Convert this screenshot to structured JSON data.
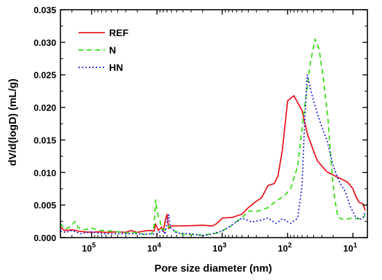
{
  "chart_data": {
    "type": "line",
    "xlabel": "Pore size diameter (nm)",
    "ylabel": "dV/d(logD)  (mL/g)",
    "x_scale": "log",
    "x_reversed": true,
    "xlim": [
      300000,
      6
    ],
    "ylim": [
      0,
      0.035
    ],
    "x_ticks": [
      {
        "value": 100000,
        "mantissa": "10",
        "exponent": "5"
      },
      {
        "value": 10000,
        "mantissa": "10",
        "exponent": "4"
      },
      {
        "value": 1000,
        "mantissa": "10",
        "exponent": "3"
      },
      {
        "value": 100,
        "mantissa": "10",
        "exponent": "2"
      },
      {
        "value": 10,
        "mantissa": "10",
        "exponent": "1"
      }
    ],
    "y_ticks": [
      "0.000",
      "0.005",
      "0.010",
      "0.015",
      "0.020",
      "0.025",
      "0.030",
      "0.035"
    ],
    "grid": false,
    "legend_position": "top-left",
    "series": [
      {
        "name": "REF",
        "color": "#e8141c",
        "dash": "solid",
        "points": [
          [
            300000,
            0.0016
          ],
          [
            260000,
            0.0011
          ],
          [
            200000,
            0.0012
          ],
          [
            160000,
            0.001
          ],
          [
            130000,
            0.0009
          ],
          [
            100000,
            0.0008
          ],
          [
            80000,
            0.0009
          ],
          [
            60000,
            0.0008
          ],
          [
            40000,
            0.0009
          ],
          [
            30000,
            0.0008
          ],
          [
            25000,
            0.0011
          ],
          [
            20000,
            0.0008
          ],
          [
            16000,
            0.001
          ],
          [
            13000,
            0.0011
          ],
          [
            11000,
            0.001
          ],
          [
            10500,
            0.0021
          ],
          [
            9500,
            0.0011
          ],
          [
            8500,
            0.0016
          ],
          [
            8000,
            0.0009
          ],
          [
            7500,
            0.0025
          ],
          [
            7000,
            0.0036
          ],
          [
            6600,
            0.0014
          ],
          [
            6000,
            0.0018
          ],
          [
            4000,
            0.0018
          ],
          [
            2000,
            0.0019
          ],
          [
            1400,
            0.0018
          ],
          [
            1200,
            0.0022
          ],
          [
            1000,
            0.003
          ],
          [
            700,
            0.0031
          ],
          [
            500,
            0.0036
          ],
          [
            400,
            0.0046
          ],
          [
            300,
            0.0056
          ],
          [
            250,
            0.0061
          ],
          [
            200,
            0.008
          ],
          [
            160,
            0.0083
          ],
          [
            140,
            0.0095
          ],
          [
            120,
            0.0135
          ],
          [
            100,
            0.021
          ],
          [
            80,
            0.0218
          ],
          [
            60,
            0.0195
          ],
          [
            50,
            0.016
          ],
          [
            40,
            0.0133
          ],
          [
            35,
            0.0118
          ],
          [
            30,
            0.011
          ],
          [
            25,
            0.0101
          ],
          [
            20,
            0.0096
          ],
          [
            15,
            0.009
          ],
          [
            12,
            0.0085
          ],
          [
            10,
            0.0075
          ],
          [
            9,
            0.0063
          ],
          [
            8,
            0.0054
          ],
          [
            7,
            0.0052
          ],
          [
            6.5,
            0.0042
          ]
        ]
      },
      {
        "name": "N",
        "color": "#33dd11",
        "dash": "dashed",
        "points": [
          [
            300000,
            0.0022
          ],
          [
            260000,
            0.0013
          ],
          [
            220000,
            0.0016
          ],
          [
            200000,
            0.0019
          ],
          [
            180000,
            0.0025
          ],
          [
            160000,
            0.0015
          ],
          [
            130000,
            0.0012
          ],
          [
            100000,
            0.0015
          ],
          [
            80000,
            0.0011
          ],
          [
            60000,
            0.0011
          ],
          [
            40000,
            0.0009
          ],
          [
            30000,
            0.0007
          ],
          [
            20000,
            0.0008
          ],
          [
            16000,
            0.0005
          ],
          [
            14000,
            0.0005
          ],
          [
            12000,
            0.0006
          ],
          [
            11000,
            0.0018
          ],
          [
            10500,
            0.0058
          ],
          [
            10000,
            0.0044
          ],
          [
            9500,
            0.0032
          ],
          [
            9000,
            0.0027
          ],
          [
            8500,
            0.0014
          ],
          [
            8000,
            0.0012
          ],
          [
            7000,
            0.0012
          ],
          [
            6500,
            0.0018
          ],
          [
            6000,
            0.0012
          ],
          [
            4000,
            0.0005
          ],
          [
            2000,
            0.0004
          ],
          [
            1200,
            0.0007
          ],
          [
            800,
            0.0015
          ],
          [
            600,
            0.0025
          ],
          [
            500,
            0.003
          ],
          [
            400,
            0.0041
          ],
          [
            300,
            0.004
          ],
          [
            200,
            0.0046
          ],
          [
            150,
            0.0056
          ],
          [
            110,
            0.0065
          ],
          [
            90,
            0.0075
          ],
          [
            70,
            0.011
          ],
          [
            55,
            0.02
          ],
          [
            45,
            0.0268
          ],
          [
            38,
            0.0305
          ],
          [
            33,
            0.029
          ],
          [
            28,
            0.024
          ],
          [
            24,
            0.018
          ],
          [
            21,
            0.01
          ],
          [
            19,
            0.006
          ],
          [
            17,
            0.0031
          ],
          [
            14,
            0.0028
          ],
          [
            10,
            0.003
          ],
          [
            8,
            0.0029
          ],
          [
            7,
            0.003
          ],
          [
            6.5,
            0.0035
          ]
        ]
      },
      {
        "name": "HN",
        "color": "#1a1adf",
        "dash": "dotted",
        "points": [
          [
            300000,
            0.001
          ],
          [
            250000,
            0.0008
          ],
          [
            200000,
            0.0011
          ],
          [
            150000,
            0.0006
          ],
          [
            100000,
            0.0009
          ],
          [
            70000,
            0.0006
          ],
          [
            50000,
            0.0006
          ],
          [
            30000,
            0.0006
          ],
          [
            20000,
            0.0006
          ],
          [
            15000,
            0.0005
          ],
          [
            12000,
            0.0006
          ],
          [
            10000,
            0.0005
          ],
          [
            9000,
            0.0009
          ],
          [
            8000,
            0.0011
          ],
          [
            7500,
            0.0005
          ],
          [
            7000,
            0.0024
          ],
          [
            6600,
            0.0035
          ],
          [
            6200,
            0.0015
          ],
          [
            5000,
            0.0007
          ],
          [
            3000,
            0.0006
          ],
          [
            2000,
            0.0003
          ],
          [
            1500,
            0.0005
          ],
          [
            1000,
            0.001
          ],
          [
            700,
            0.002
          ],
          [
            500,
            0.003
          ],
          [
            350,
            0.0024
          ],
          [
            250,
            0.0027
          ],
          [
            200,
            0.003
          ],
          [
            150,
            0.0022
          ],
          [
            120,
            0.0029
          ],
          [
            90,
            0.0022
          ],
          [
            70,
            0.003
          ],
          [
            60,
            0.008
          ],
          [
            55,
            0.0175
          ],
          [
            50,
            0.025
          ],
          [
            45,
            0.023
          ],
          [
            40,
            0.021
          ],
          [
            35,
            0.019
          ],
          [
            30,
            0.017
          ],
          [
            25,
            0.015
          ],
          [
            20,
            0.011
          ],
          [
            16,
            0.0085
          ],
          [
            13,
            0.007
          ],
          [
            11,
            0.0048
          ],
          [
            9,
            0.0031
          ],
          [
            8,
            0.0028
          ],
          [
            7,
            0.003
          ],
          [
            6.5,
            0.004
          ]
        ]
      }
    ]
  }
}
